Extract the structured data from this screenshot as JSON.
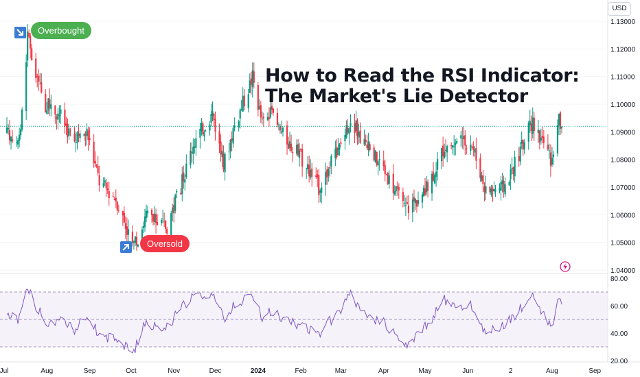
{
  "title_lines": [
    "How to Read the RSI Indicator:",
    "The Market's Lie Detector"
  ],
  "currency": "USD",
  "badges": {
    "overbought": "Overbought",
    "oversold": "Oversold"
  },
  "icons": {
    "overbought_arrow": "arrow-down-right-icon",
    "oversold_arrow": "arrow-up-right-icon",
    "flash": "lightning-icon"
  },
  "colors": {
    "up": "#089981",
    "down": "#f23645",
    "rsi_line": "#7e57c2",
    "rsi_band": "#ede7f6",
    "last_price_line": "#089981"
  },
  "chart_data": [
    {
      "type": "candlestick",
      "ylim": [
        1.04,
        1.13
      ],
      "y_ticks": [
        "1.13000",
        "1.12000",
        "1.11000",
        "1.10000",
        "1.09000",
        "1.08000",
        "1.07000",
        "1.06000",
        "1.05000",
        "1.04000"
      ],
      "x_ticks": [
        "Jul",
        "Aug",
        "Sep",
        "Oct",
        "Nov",
        "Dec",
        "2024",
        "Feb",
        "Mar",
        "Apr",
        "May",
        "Jun",
        "2",
        "Aug",
        "Sep"
      ],
      "last_price": 1.092,
      "anchors_close": [
        [
          "2023-07-01",
          1.09
        ],
        [
          "2023-07-12",
          1.086
        ],
        [
          "2023-07-18",
          1.124
        ],
        [
          "2023-07-24",
          1.11
        ],
        [
          "2023-07-31",
          1.1
        ],
        [
          "2023-08-10",
          1.097
        ],
        [
          "2023-08-21",
          1.086
        ],
        [
          "2023-08-30",
          1.09
        ],
        [
          "2023-09-08",
          1.072
        ],
        [
          "2023-09-20",
          1.066
        ],
        [
          "2023-09-28",
          1.055
        ],
        [
          "2023-10-03",
          1.048
        ],
        [
          "2023-10-12",
          1.06
        ],
        [
          "2023-10-20",
          1.057
        ],
        [
          "2023-10-27",
          1.056
        ],
        [
          "2023-11-06",
          1.07
        ],
        [
          "2023-11-15",
          1.086
        ],
        [
          "2023-11-29",
          1.097
        ],
        [
          "2023-12-07",
          1.078
        ],
        [
          "2023-12-14",
          1.091
        ],
        [
          "2023-12-28",
          1.11
        ],
        [
          "2024-01-04",
          1.093
        ],
        [
          "2024-01-10",
          1.096
        ],
        [
          "2024-01-19",
          1.089
        ],
        [
          "2024-02-02",
          1.08
        ],
        [
          "2024-02-14",
          1.07
        ],
        [
          "2024-02-28",
          1.083
        ],
        [
          "2024-03-08",
          1.095
        ],
        [
          "2024-03-19",
          1.085
        ],
        [
          "2024-04-01",
          1.077
        ],
        [
          "2024-04-16",
          1.062
        ],
        [
          "2024-05-01",
          1.068
        ],
        [
          "2024-05-15",
          1.085
        ],
        [
          "2024-05-27",
          1.086
        ],
        [
          "2024-06-03",
          1.087
        ],
        [
          "2024-06-14",
          1.069
        ],
        [
          "2024-06-27",
          1.07
        ],
        [
          "2024-07-08",
          1.082
        ],
        [
          "2024-07-17",
          1.093
        ],
        [
          "2024-07-26",
          1.086
        ],
        [
          "2024-08-01",
          1.079
        ],
        [
          "2024-08-05",
          1.095
        ],
        [
          "2024-08-08",
          1.092
        ]
      ]
    },
    {
      "type": "line",
      "series": [
        {
          "values_anchor": [
            [
              "2023-07-01",
              55
            ],
            [
              "2023-07-12",
              50
            ],
            [
              "2023-07-18",
              72
            ],
            [
              "2023-07-24",
              60
            ],
            [
              "2023-07-31",
              48
            ],
            [
              "2023-08-10",
              50
            ],
            [
              "2023-08-21",
              42
            ],
            [
              "2023-08-30",
              55
            ],
            [
              "2023-09-08",
              38
            ],
            [
              "2023-09-20",
              36
            ],
            [
              "2023-09-28",
              30
            ],
            [
              "2023-10-03",
              27
            ],
            [
              "2023-10-12",
              50
            ],
            [
              "2023-10-20",
              42
            ],
            [
              "2023-10-27",
              44
            ],
            [
              "2023-11-06",
              58
            ],
            [
              "2023-11-15",
              66
            ],
            [
              "2023-11-29",
              70
            ],
            [
              "2023-12-07",
              50
            ],
            [
              "2023-12-14",
              60
            ],
            [
              "2023-12-28",
              68
            ],
            [
              "2024-01-04",
              52
            ],
            [
              "2024-01-10",
              56
            ],
            [
              "2024-01-19",
              50
            ],
            [
              "2024-02-02",
              45
            ],
            [
              "2024-02-14",
              40
            ],
            [
              "2024-02-28",
              55
            ],
            [
              "2024-03-08",
              68
            ],
            [
              "2024-03-19",
              52
            ],
            [
              "2024-04-01",
              48
            ],
            [
              "2024-04-16",
              30
            ],
            [
              "2024-05-01",
              44
            ],
            [
              "2024-05-15",
              64
            ],
            [
              "2024-05-27",
              58
            ],
            [
              "2024-06-03",
              62
            ],
            [
              "2024-06-14",
              40
            ],
            [
              "2024-06-27",
              46
            ],
            [
              "2024-07-08",
              56
            ],
            [
              "2024-07-17",
              69
            ],
            [
              "2024-07-26",
              54
            ],
            [
              "2024-08-01",
              44
            ],
            [
              "2024-08-05",
              63
            ],
            [
              "2024-08-08",
              60
            ]
          ]
        }
      ],
      "ylim": [
        20,
        80
      ],
      "y_ticks": [
        "80.00",
        "60.00",
        "40.00",
        "20.00"
      ],
      "bands": [
        30,
        50,
        70
      ]
    }
  ]
}
